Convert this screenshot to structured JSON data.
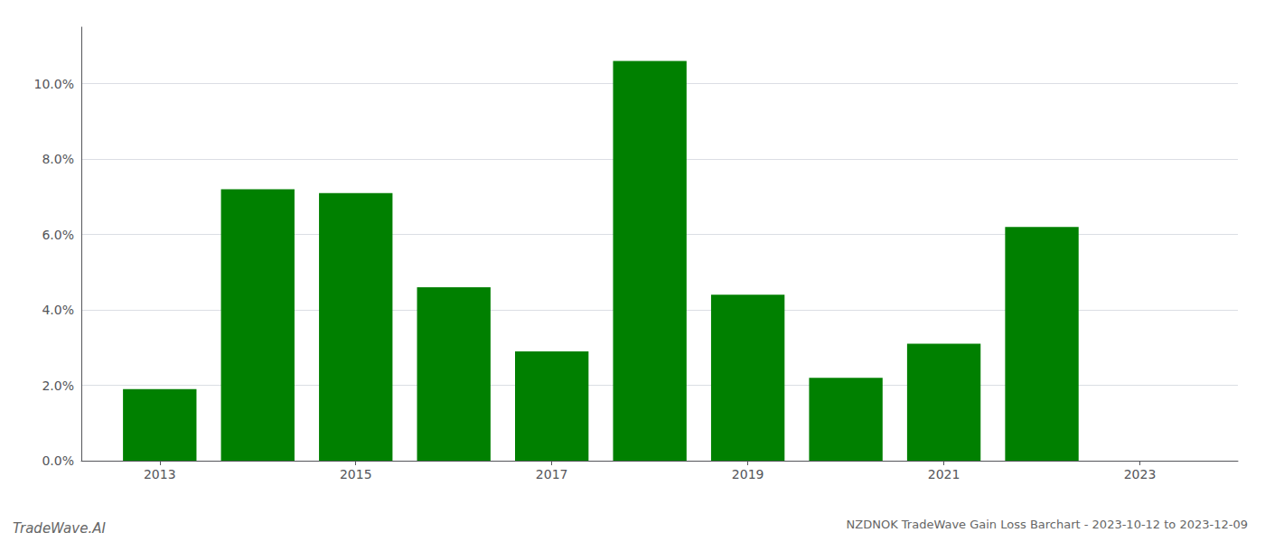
{
  "chart_data": {
    "type": "bar",
    "title": "NZDNOK TradeWave Gain Loss Barchart - 2023-10-12 to 2023-12-09",
    "annotations": [
      "TradeWave.AI"
    ],
    "x": [
      2013,
      2014,
      2015,
      2016,
      2017,
      2018,
      2019,
      2020,
      2021,
      2022
    ],
    "values": [
      0.019,
      0.072,
      0.071,
      0.046,
      0.029,
      0.106,
      0.044,
      0.022,
      0.031,
      0.062
    ],
    "color": "#008000",
    "xlim": [
      2012.2,
      2024.0
    ],
    "xticks": [
      2013,
      2015,
      2017,
      2019,
      2021,
      2023
    ],
    "ylim": [
      0,
      0.115
    ],
    "yticks": [
      {
        "value": 0.0,
        "label": "0.0%"
      },
      {
        "value": 0.02,
        "label": "2.0%"
      },
      {
        "value": 0.04,
        "label": "4.0%"
      },
      {
        "value": 0.06,
        "label": "6.0%"
      },
      {
        "value": 0.08,
        "label": "8.0%"
      },
      {
        "value": 0.1,
        "label": "10.0%"
      }
    ],
    "grid": true
  }
}
